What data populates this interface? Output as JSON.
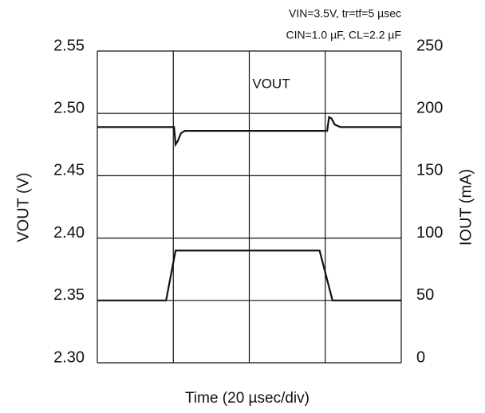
{
  "chart_data": {
    "type": "line",
    "annotations": [
      "VIN=3.5V, tr=tf=5 µsec",
      "CIN=1.0 µF, CL=2.2 µF",
      "VOUT"
    ],
    "ylabel": "VOUT (V)",
    "y2label": "IOUT (mA)",
    "xlabel": "Time (20 µsec/div)",
    "xlim": [
      0,
      80
    ],
    "xticks": [
      0,
      20,
      40,
      60,
      80
    ],
    "ylim": [
      2.3,
      2.55
    ],
    "yticks": [
      {
        "value": 2.3,
        "label": "2.30"
      },
      {
        "value": 2.35,
        "label": "2.35"
      },
      {
        "value": 2.4,
        "label": "2.40"
      },
      {
        "value": 2.45,
        "label": "2.45"
      },
      {
        "value": 2.5,
        "label": "2.50"
      },
      {
        "value": 2.55,
        "label": "2.55"
      }
    ],
    "y2lim": [
      0,
      250
    ],
    "y2ticks": [
      0,
      50,
      100,
      150,
      200,
      250
    ],
    "grid": true,
    "series": [
      {
        "name": "VOUT",
        "color": "#111111",
        "x": [
          0,
          20.2,
          20.6,
          21.2,
          22,
          23,
          60.5,
          61,
          61.6,
          62.5,
          64,
          80
        ],
        "values": [
          2.489,
          2.489,
          2.475,
          2.478,
          2.484,
          2.486,
          2.486,
          2.497,
          2.496,
          2.491,
          2.489,
          2.489
        ]
      },
      {
        "name": "IOUT",
        "color": "#111111",
        "axis": "y2",
        "x": [
          0,
          18.1,
          20.6,
          58.5,
          61.9,
          80
        ],
        "values": [
          50,
          50,
          90,
          90,
          50,
          50
        ]
      }
    ]
  }
}
